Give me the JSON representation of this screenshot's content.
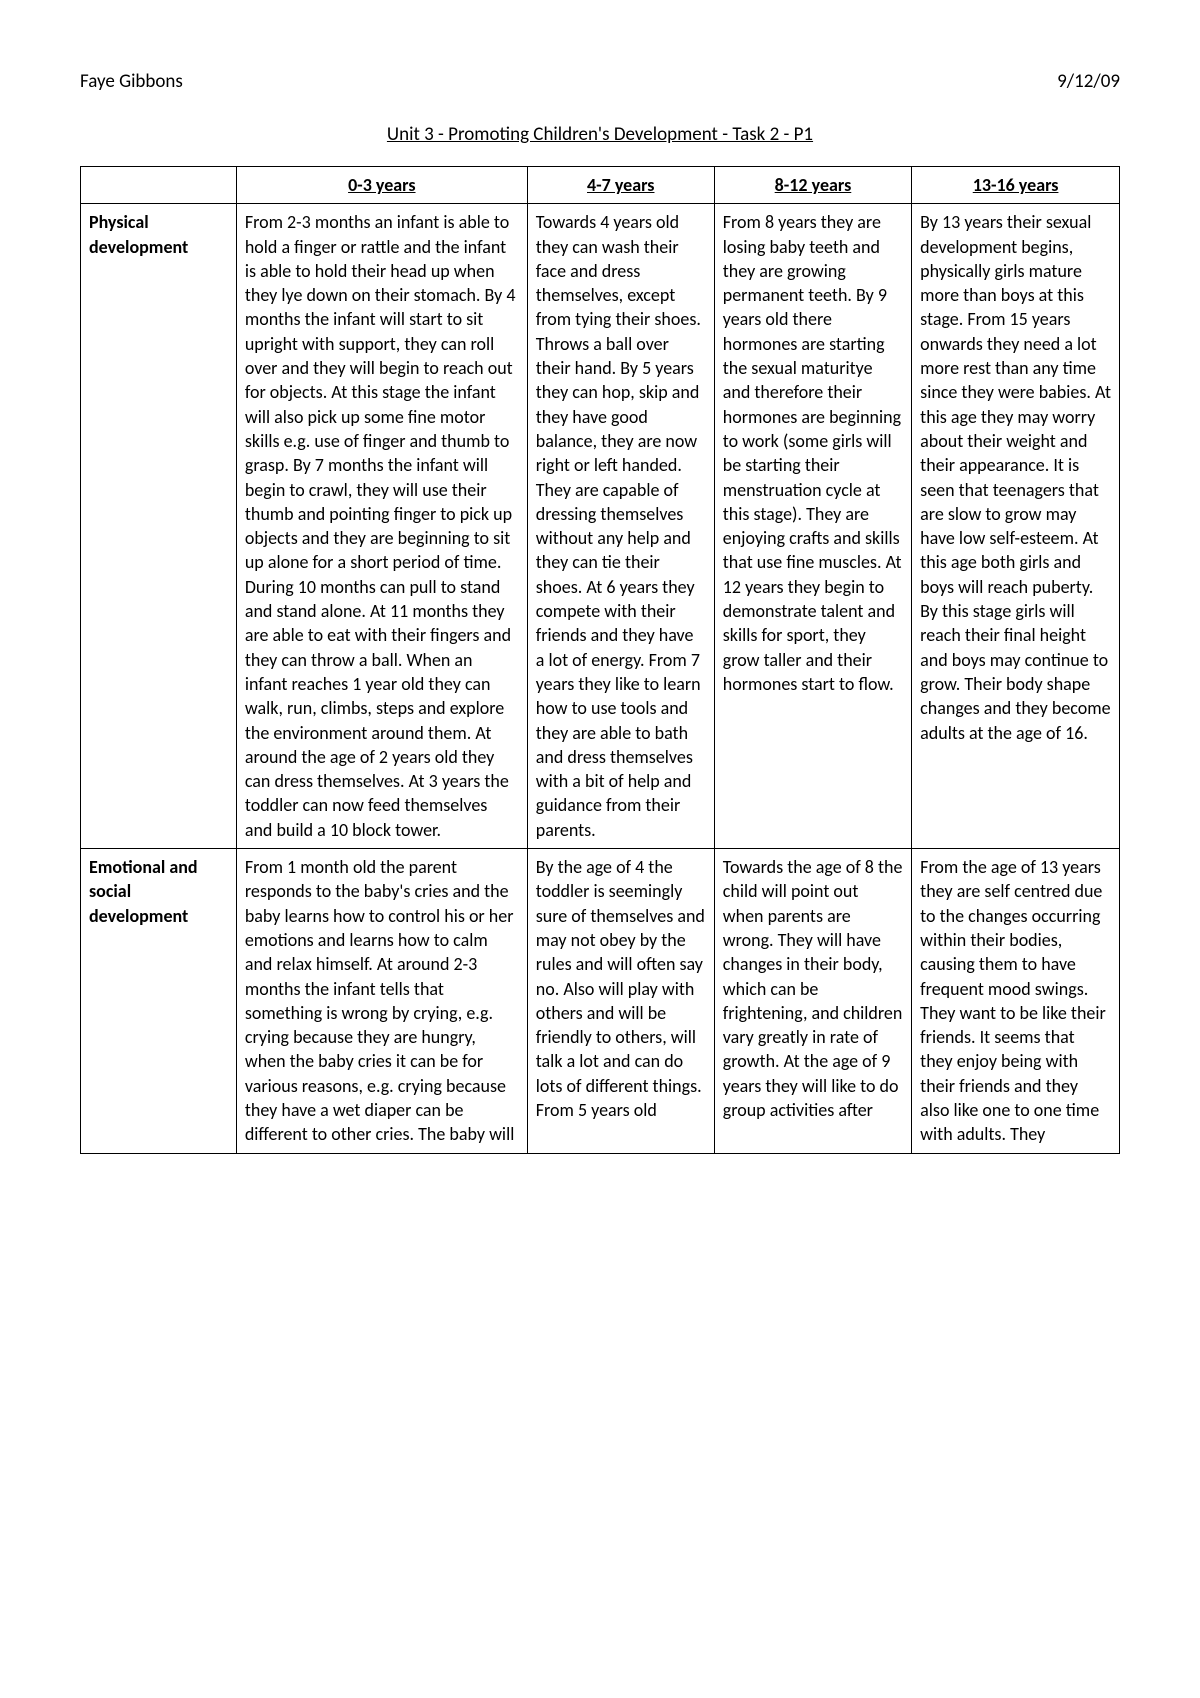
{
  "header": {
    "author": "Faye Gibbons",
    "date": "9/12/09"
  },
  "title": "Unit 3 - Promoting Children's Development - Task 2 - P1",
  "table": {
    "columns": [
      "",
      "0-3 years",
      "4-7 years",
      "8-12 years",
      "13-16 years"
    ],
    "rows": [
      {
        "header": "Physical development",
        "cells": [
          "From 2-3 months an infant is able to hold a finger or rattle and the infant is able to hold their head up when they lye down on their stomach. By 4 months the infant will start to sit upright with support, they can roll over and they will begin to reach out for objects. At this stage the infant will also pick up some fine motor skills e.g. use of finger and thumb to grasp. By 7 months the infant will begin to crawl, they will use their thumb and pointing finger to pick up objects and they are beginning to sit up alone for a short period of time. During 10 months can pull to stand and stand alone. At 11 months they are able to eat with their fingers and they can throw a ball.  When an infant reaches 1 year old they can walk, run, climbs, steps and explore the environment around them. At around the age of 2 years old they can dress themselves. At 3 years the toddler can now feed themselves and build a 10 block tower.",
          "Towards 4 years old they can wash their face and dress themselves, except from tying their shoes. Throws a ball over their hand. By 5 years they can hop, skip and they have good balance, they are now right or left handed. They are capable of dressing themselves without any help and they can tie their shoes. At 6 years they compete with their friends and they have a lot of energy. From 7 years they like to learn how to use tools and they are able to bath and dress themselves with a bit of help and guidance from their parents.",
          "From 8 years they are losing baby teeth and they are growing permanent teeth. By 9 years old there hormones are starting the sexual maturitye and therefore their hormones are beginning to work (some girls will be starting their menstruation cycle at this stage). They are enjoying crafts and skills that use fine muscles. At 12 years they begin to demonstrate talent and skills for sport, they grow taller and their hormones start to flow.",
          "By 13 years their sexual development begins, physically girls mature more than boys at this stage. From 15 years onwards they need a lot   more rest than any time since they were babies. At this age they may worry about their weight and their appearance. It is seen that teenagers that are slow to grow may have low self-esteem. At this age both girls and boys will reach puberty. By this stage girls will reach their final height and boys may continue to grow. Their body shape changes and they become adults at the age of 16."
        ]
      },
      {
        "header": "Emotional and social development",
        "cells": [
          "From 1 month old the parent responds to the baby's cries and the baby learns how to control his or her emotions and learns how to calm and relax himself. At around 2-3 months the infant tells that something is wrong by crying, e.g. crying because they are hungry, when the baby cries it can be for various reasons, e.g. crying because they have a wet diaper can be different to other cries. The baby will",
          "By the age of 4 the toddler is seemingly sure of themselves and may not obey by the rules and will often say no. Also will play with others and will be friendly to others, will talk a lot and can do lots of different things. From 5 years old",
          "Towards the age of 8 the child will point out when parents are wrong. They will have changes in their body, which can be frightening, and children vary greatly in rate of growth. At the age of 9 years they will like to do group activities after",
          "From the age of 13 years they are self centred due to the changes occurring within their bodies, causing them to have frequent mood swings. They want to be like their friends. It seems that they enjoy being with their friends and they also like one to one time with adults. They"
        ]
      }
    ]
  }
}
